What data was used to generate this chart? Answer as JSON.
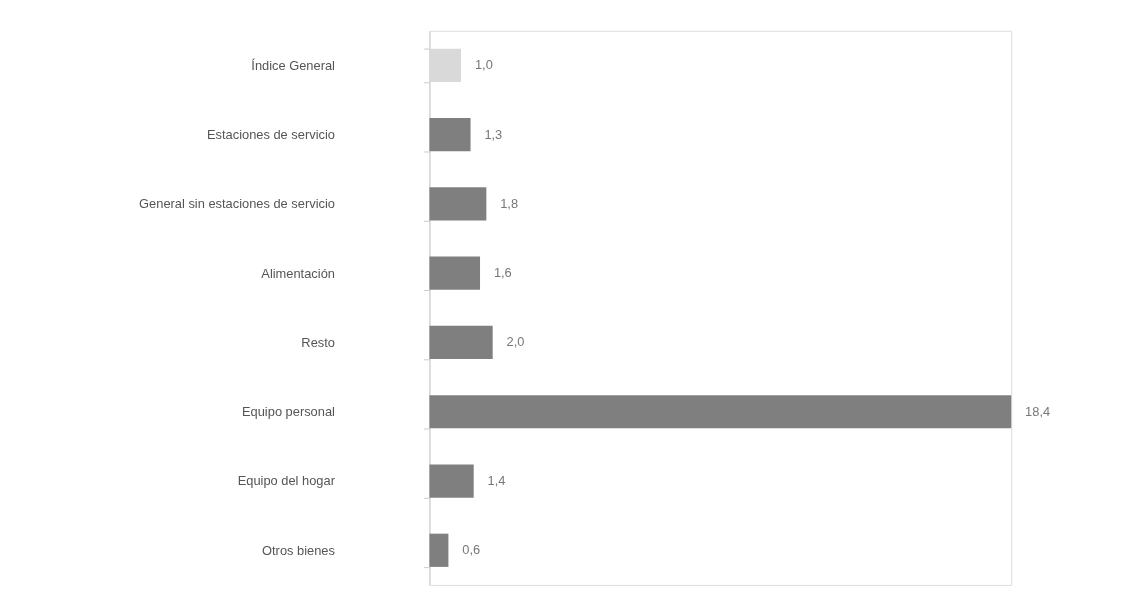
{
  "chart_data": {
    "type": "bar",
    "orientation": "horizontal",
    "categories": [
      "Índice General",
      "Estaciones de servicio",
      "General sin estaciones de servicio",
      "Alimentación",
      "Resto",
      "Equipo personal",
      "Equipo del hogar",
      "Otros bienes"
    ],
    "values": [
      1.0,
      1.3,
      1.8,
      1.6,
      2.0,
      18.4,
      1.4,
      0.6
    ],
    "colors": [
      "#d9d9d9",
      "#7f7f7f",
      "#7f7f7f",
      "#7f7f7f",
      "#7f7f7f",
      "#7f7f7f",
      "#7f7f7f",
      "#7f7f7f"
    ],
    "value_labels": [
      "1,0",
      "1,3",
      "1,8",
      "1,6",
      "2,0",
      "18,4",
      "1,4",
      "0,6"
    ],
    "legend": false,
    "tick_labels": "y"
  }
}
